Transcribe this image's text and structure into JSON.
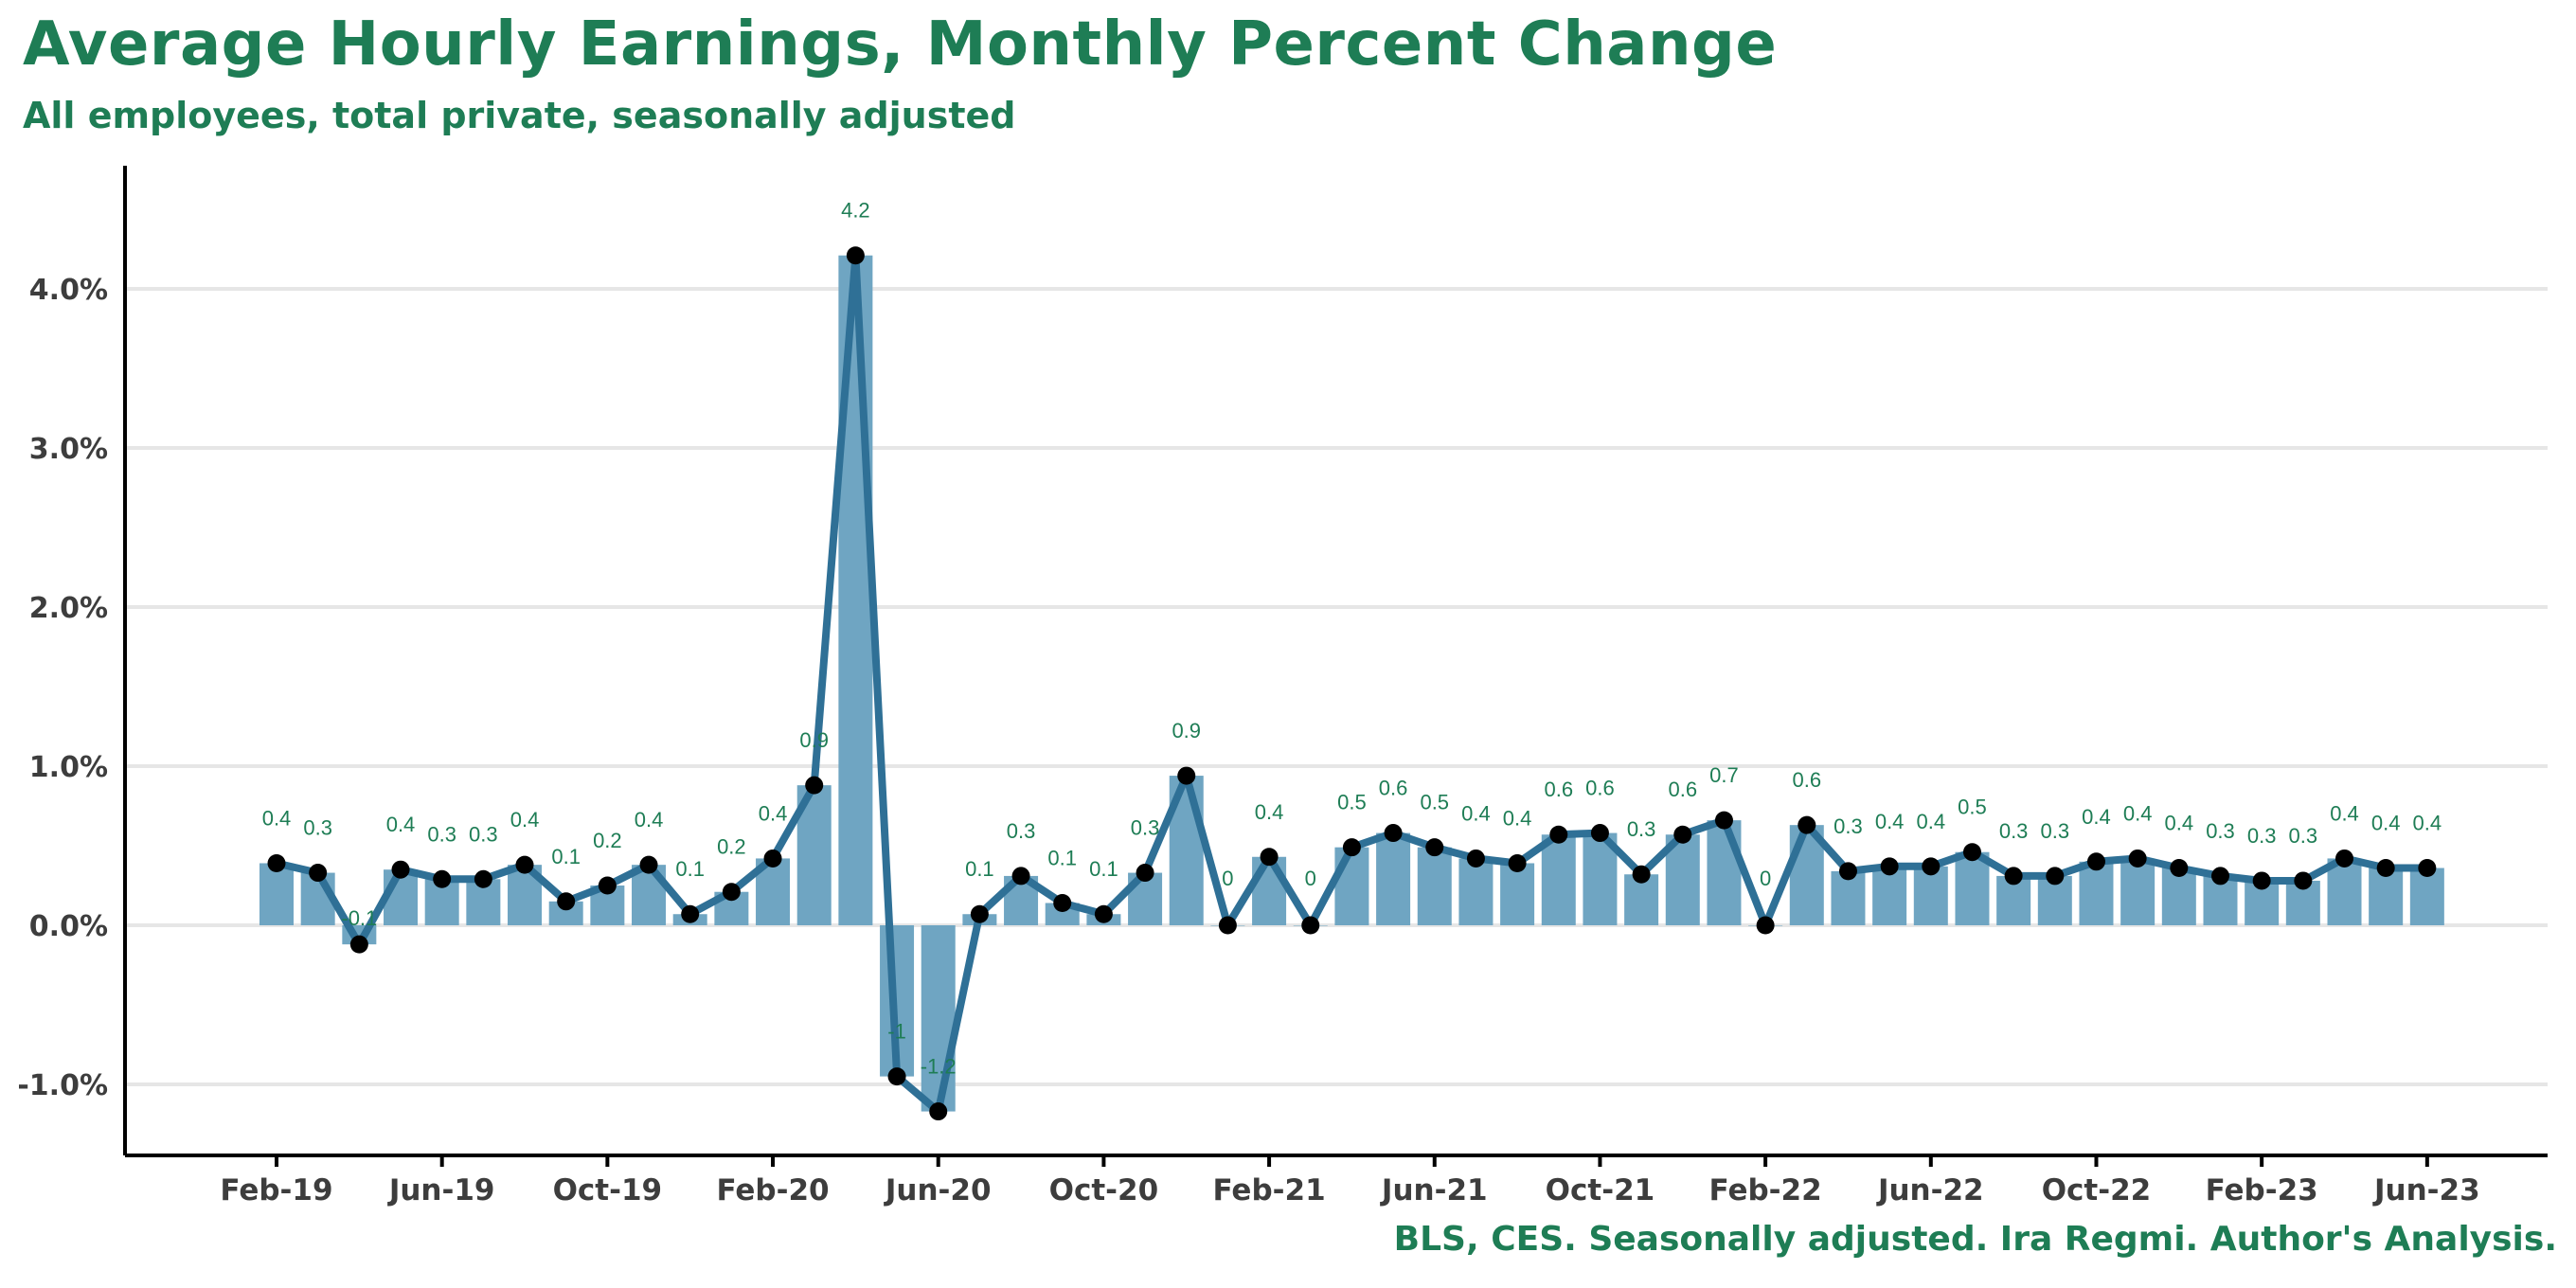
{
  "chart_data": {
    "type": "bar",
    "title": "Average Hourly Earnings, Monthly Percent Change",
    "subtitle": "All employees, total private, seasonally adjusted",
    "caption": "BLS, CES. Seasonally adjusted. Ira Regmi. Author's Analysis.",
    "xlabel": "",
    "ylabel": "",
    "ylim": [
      -1.5,
      4.8
    ],
    "y_ticks": [
      -1.0,
      0.0,
      1.0,
      2.0,
      3.0,
      4.0
    ],
    "y_tick_labels": [
      "-1.0%",
      "0.0%",
      "1.0%",
      "2.0%",
      "3.0%",
      "4.0%"
    ],
    "x_tick_labels": [
      "Feb-19",
      "Jun-19",
      "Oct-19",
      "Feb-20",
      "Jun-20",
      "Oct-20",
      "Feb-21",
      "Jun-21",
      "Oct-21",
      "Feb-22",
      "Jun-22",
      "Oct-22",
      "Feb-23",
      "Jun-23"
    ],
    "categories": [
      "Feb-19",
      "Mar-19",
      "Apr-19",
      "May-19",
      "Jun-19",
      "Jul-19",
      "Aug-19",
      "Sep-19",
      "Oct-19",
      "Nov-19",
      "Dec-19",
      "Jan-20",
      "Feb-20",
      "Mar-20",
      "Apr-20",
      "May-20",
      "Jun-20",
      "Jul-20",
      "Aug-20",
      "Sep-20",
      "Oct-20",
      "Nov-20",
      "Dec-20",
      "Jan-21",
      "Feb-21",
      "Mar-21",
      "Apr-21",
      "May-21",
      "Jun-21",
      "Jul-21",
      "Aug-21",
      "Sep-21",
      "Oct-21",
      "Nov-21",
      "Dec-21",
      "Jan-22",
      "Feb-22",
      "Mar-22",
      "Apr-22",
      "May-22",
      "Jun-22",
      "Jul-22",
      "Aug-22",
      "Sep-22",
      "Oct-22",
      "Nov-22",
      "Dec-22",
      "Jan-23",
      "Feb-23",
      "Mar-23",
      "Apr-23",
      "May-23",
      "Jun-23"
    ],
    "values": [
      0.39,
      0.33,
      -0.12,
      0.35,
      0.29,
      0.29,
      0.38,
      0.15,
      0.25,
      0.38,
      0.07,
      0.21,
      0.42,
      0.88,
      4.21,
      -0.95,
      -1.17,
      0.07,
      0.31,
      0.14,
      0.07,
      0.33,
      0.94,
      0.0,
      0.43,
      0.0,
      0.49,
      0.58,
      0.49,
      0.42,
      0.39,
      0.57,
      0.58,
      0.32,
      0.57,
      0.66,
      0.0,
      0.63,
      0.34,
      0.37,
      0.37,
      0.46,
      0.31,
      0.31,
      0.4,
      0.42,
      0.36,
      0.31,
      0.28,
      0.28,
      0.42,
      0.36,
      0.36
    ],
    "value_labels": [
      "0.4",
      "0.3",
      "-0.1",
      "0.4",
      "0.3",
      "0.3",
      "0.4",
      "0.1",
      "0.2",
      "0.4",
      "0.1",
      "0.2",
      "0.4",
      "0.9",
      "4.2",
      "-1",
      "-1.2",
      "0.1",
      "0.3",
      "0.1",
      "0.1",
      "0.3",
      "0.9",
      "0",
      "0.4",
      "0",
      "0.5",
      "0.6",
      "0.5",
      "0.4",
      "0.4",
      "0.6",
      "0.6",
      "0.3",
      "0.6",
      "0.7",
      "0",
      "0.6",
      "0.3",
      "0.4",
      "0.4",
      "0.5",
      "0.3",
      "0.3",
      "0.4",
      "0.4",
      "0.4",
      "0.3",
      "0.3",
      "0.3",
      "0.4",
      "0.4",
      "0.4"
    ],
    "grid": "horizontal",
    "legend": "none",
    "colors": {
      "bar": "#6fa5c2",
      "line": "#2f7096",
      "point": "#000000",
      "label": "#1e7d55",
      "title": "#1e7d55",
      "grid": "#e6e6e6",
      "axis": "#000000"
    }
  }
}
